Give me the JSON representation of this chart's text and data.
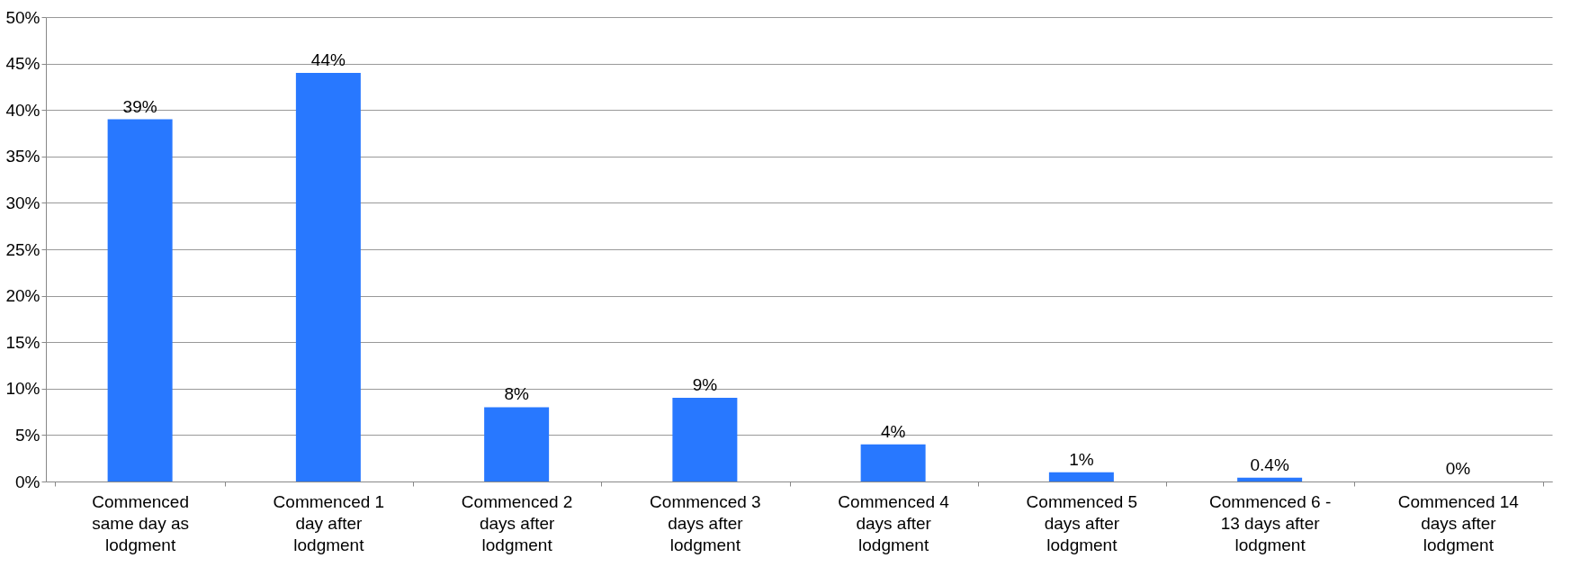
{
  "chart_data": {
    "type": "bar",
    "categories": [
      "Commenced same day as lodgment",
      "Commenced 1 day after lodgment",
      "Commenced 2 days after lodgment",
      "Commenced 3 days after lodgment",
      "Commenced 4 days after lodgment",
      "Commenced 5 days after lodgment",
      "Commenced 6 - 13 days after lodgment",
      "Commenced 14 days after lodgment"
    ],
    "values": [
      39,
      44,
      8,
      9,
      4,
      1,
      0.4,
      0
    ],
    "color": "#2878ff",
    "ylim": [
      0,
      50
    ],
    "yticks": [
      {
        "value": 0,
        "label": "0%"
      },
      {
        "value": 5,
        "label": "5%"
      },
      {
        "value": 10,
        "label": "10%"
      },
      {
        "value": 15,
        "label": "15%"
      },
      {
        "value": 20,
        "label": "20%"
      },
      {
        "value": 25,
        "label": "25%"
      },
      {
        "value": 30,
        "label": "30%"
      },
      {
        "value": 35,
        "label": "35%"
      },
      {
        "value": 40,
        "label": "40%"
      },
      {
        "value": 45,
        "label": "45%"
      },
      {
        "value": 50,
        "label": "50%"
      }
    ],
    "grid": "y",
    "value_labels": [
      "39%",
      "44%",
      "8%",
      "9%",
      "4%",
      "1%",
      "0.4%",
      "0%"
    ]
  }
}
